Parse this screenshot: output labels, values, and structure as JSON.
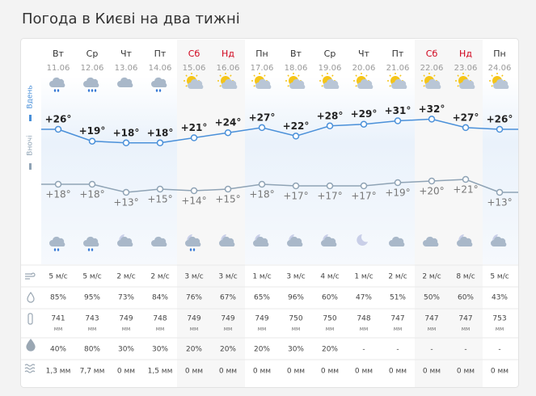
{
  "header": {
    "title": "Погода в Києві на два тижні"
  },
  "labels": {
    "day": "Вдень",
    "night": "Вночі",
    "pressure_unit": "мм"
  },
  "days": [
    {
      "weekday": "Вт",
      "date": "11.06",
      "day_temp": {
        "value": 26,
        "label": "+26°"
      },
      "night_temp": {
        "value": 18,
        "label": "+18°"
      },
      "wind": "5 м/с",
      "humidity": "85%",
      "pressure": "741",
      "precip_prob": "40%",
      "precipitation": "1,3 мм"
    },
    {
      "weekday": "Ср",
      "date": "12.06",
      "day_temp": {
        "value": 19,
        "label": "+19°"
      },
      "night_temp": {
        "value": 18,
        "label": "+18°"
      },
      "wind": "5 м/с",
      "humidity": "95%",
      "pressure": "743",
      "precip_prob": "80%",
      "precipitation": "7,7 мм"
    },
    {
      "weekday": "Чт",
      "date": "13.06",
      "day_temp": {
        "value": 18,
        "label": "+18°"
      },
      "night_temp": {
        "value": 13,
        "label": "+13°"
      },
      "wind": "2 м/с",
      "humidity": "73%",
      "pressure": "749",
      "precip_prob": "30%",
      "precipitation": "0 мм"
    },
    {
      "weekday": "Пт",
      "date": "14.06",
      "day_temp": {
        "value": 18,
        "label": "+18°"
      },
      "night_temp": {
        "value": 15,
        "label": "+15°"
      },
      "wind": "2 м/с",
      "humidity": "84%",
      "pressure": "748",
      "precip_prob": "30%",
      "precipitation": "1,5 мм"
    },
    {
      "weekday": "Сб",
      "date": "15.06",
      "day_temp": {
        "value": 21,
        "label": "+21°"
      },
      "night_temp": {
        "value": 14,
        "label": "+14°"
      },
      "wind": "3 м/с",
      "humidity": "76%",
      "pressure": "749",
      "precip_prob": "20%",
      "precipitation": "0 мм"
    },
    {
      "weekday": "Нд",
      "date": "16.06",
      "day_temp": {
        "value": 24,
        "label": "+24°"
      },
      "night_temp": {
        "value": 15,
        "label": "+15°"
      },
      "wind": "3 м/с",
      "humidity": "67%",
      "pressure": "749",
      "precip_prob": "20%",
      "precipitation": "0 мм"
    },
    {
      "weekday": "Пн",
      "date": "17.06",
      "day_temp": {
        "value": 27,
        "label": "+27°"
      },
      "night_temp": {
        "value": 18,
        "label": "+18°"
      },
      "wind": "1 м/с",
      "humidity": "65%",
      "pressure": "749",
      "precip_prob": "20%",
      "precipitation": "0 мм"
    },
    {
      "weekday": "Вт",
      "date": "18.06",
      "day_temp": {
        "value": 22,
        "label": "+22°"
      },
      "night_temp": {
        "value": 17,
        "label": "+17°"
      },
      "wind": "3 м/с",
      "humidity": "96%",
      "pressure": "750",
      "precip_prob": "30%",
      "precipitation": "0 мм"
    },
    {
      "weekday": "Ср",
      "date": "19.06",
      "day_temp": {
        "value": 28,
        "label": "+28°"
      },
      "night_temp": {
        "value": 17,
        "label": "+17°"
      },
      "wind": "4 м/с",
      "humidity": "60%",
      "pressure": "750",
      "precip_prob": "20%",
      "precipitation": "0 мм"
    },
    {
      "weekday": "Чт",
      "date": "20.06",
      "day_temp": {
        "value": 29,
        "label": "+29°"
      },
      "night_temp": {
        "value": 17,
        "label": "+17°"
      },
      "wind": "1 м/с",
      "humidity": "47%",
      "pressure": "748",
      "precip_prob": "-",
      "precipitation": "0 мм"
    },
    {
      "weekday": "Пт",
      "date": "21.06",
      "day_temp": {
        "value": 31,
        "label": "+31°"
      },
      "night_temp": {
        "value": 19,
        "label": "+19°"
      },
      "wind": "2 м/с",
      "humidity": "51%",
      "pressure": "747",
      "precip_prob": "-",
      "precipitation": "0 мм"
    },
    {
      "weekday": "Сб",
      "date": "22.06",
      "day_temp": {
        "value": 32,
        "label": "+32°"
      },
      "night_temp": {
        "value": 20,
        "label": "+20°"
      },
      "wind": "2 м/с",
      "humidity": "50%",
      "pressure": "747",
      "precip_prob": "-",
      "precipitation": "0 мм"
    },
    {
      "weekday": "Нд",
      "date": "23.06",
      "day_temp": {
        "value": 27,
        "label": "+27°"
      },
      "night_temp": {
        "value": 21,
        "label": "+21°"
      },
      "wind": "8 м/с",
      "humidity": "60%",
      "pressure": "747",
      "precip_prob": "-",
      "precipitation": "0 мм"
    },
    {
      "weekday": "Пн",
      "date": "24.06",
      "day_temp": {
        "value": 26,
        "label": "+26°"
      },
      "night_temp": {
        "value": 13,
        "label": "+13°"
      },
      "wind": "5 м/с",
      "humidity": "43%",
      "pressure": "753",
      "precip_prob": "-",
      "precipitation": "0 мм"
    }
  ]
}
